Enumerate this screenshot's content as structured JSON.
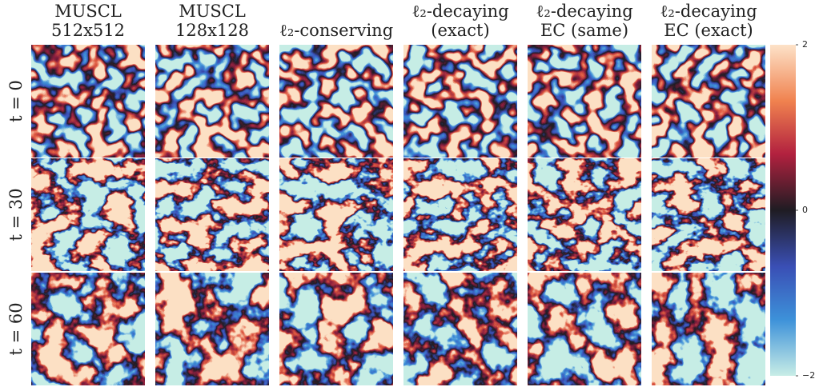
{
  "columns": [
    {
      "title": [
        "MUSCL",
        "512x512"
      ]
    },
    {
      "title": [
        "MUSCL",
        "128x128"
      ]
    },
    {
      "title": [
        "ℓ₂-conserving"
      ]
    },
    {
      "title": [
        "ℓ₂-decaying",
        "(exact)"
      ]
    },
    {
      "title": [
        "ℓ₂-decaying",
        "EC (same)"
      ]
    },
    {
      "title": [
        "ℓ₂-decaying",
        "EC (exact)"
      ]
    }
  ],
  "rows": [
    "t = 0",
    "t = 30",
    "t = 60"
  ],
  "colorbar": {
    "ticks": [
      2,
      0,
      {
        "value": -2,
        "label": "−2"
      }
    ]
  }
}
